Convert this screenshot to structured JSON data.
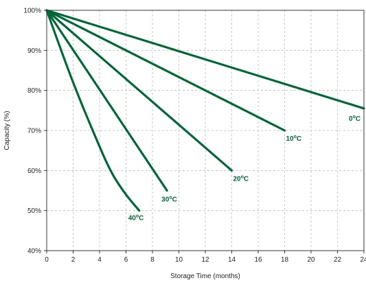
{
  "chart_data": {
    "type": "line",
    "xlabel": "Storage Time (months)",
    "ylabel": "Capacity (%)",
    "xlim": [
      0,
      24
    ],
    "ylim": [
      40,
      100
    ],
    "x_ticks": [
      0,
      2,
      4,
      6,
      8,
      10,
      12,
      14,
      16,
      18,
      20,
      22,
      24
    ],
    "y_ticks": [
      40,
      50,
      60,
      70,
      80,
      90,
      100
    ],
    "y_tick_suffix": "%",
    "grid": true,
    "line_color": "#006837",
    "series": [
      {
        "name": "0°C",
        "label_base": "0",
        "label_sup": "o",
        "label_tail": "C",
        "x": [
          0,
          24
        ],
        "y": [
          100,
          75.5
        ]
      },
      {
        "name": "10°C",
        "label_base": "10",
        "label_sup": "o",
        "label_tail": "C",
        "x": [
          0,
          18
        ],
        "y": [
          100,
          70
        ]
      },
      {
        "name": "20°C",
        "label_base": "20",
        "label_sup": "o",
        "label_tail": "C",
        "x": [
          0,
          14
        ],
        "y": [
          100,
          60
        ]
      },
      {
        "name": "30°C",
        "label_base": "30",
        "label_sup": "o",
        "label_tail": "C",
        "x": [
          0,
          9.1
        ],
        "y": [
          100,
          55
        ]
      },
      {
        "name": "40°C",
        "label_base": "40",
        "label_sup": "o",
        "label_tail": "C",
        "x": [
          0,
          2,
          4,
          5,
          6,
          7
        ],
        "y": [
          100,
          82,
          66,
          59,
          54,
          50
        ]
      }
    ]
  }
}
